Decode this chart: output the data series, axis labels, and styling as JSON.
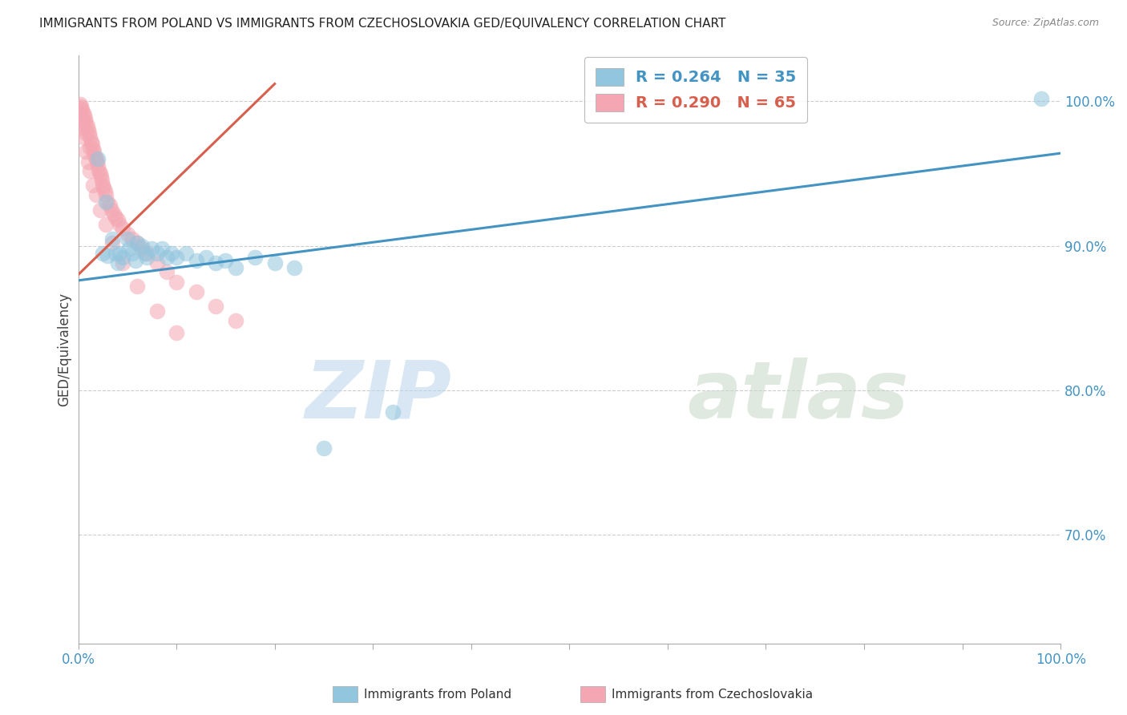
{
  "title": "IMMIGRANTS FROM POLAND VS IMMIGRANTS FROM CZECHOSLOVAKIA GED/EQUIVALENCY CORRELATION CHART",
  "source": "Source: ZipAtlas.com",
  "ylabel": "GED/Equivalency",
  "color_blue": "#92c5de",
  "color_pink": "#f4a7b2",
  "color_line_blue": "#4393c3",
  "color_line_pink": "#d6604d",
  "color_legend_text_blue": "#4393c3",
  "color_legend_text_pink": "#d6604d",
  "watermark_1": "ZIP",
  "watermark_2": "atlas",
  "blue_scatter_x": [
    0.02,
    0.025,
    0.028,
    0.03,
    0.035,
    0.038,
    0.04,
    0.042,
    0.045,
    0.05,
    0.052,
    0.055,
    0.058,
    0.06,
    0.065,
    0.068,
    0.07,
    0.075,
    0.08,
    0.085,
    0.09,
    0.095,
    0.1,
    0.11,
    0.12,
    0.13,
    0.14,
    0.15,
    0.16,
    0.18,
    0.2,
    0.22,
    0.25,
    0.32,
    0.98
  ],
  "blue_scatter_y": [
    0.96,
    0.895,
    0.93,
    0.893,
    0.905,
    0.895,
    0.888,
    0.895,
    0.892,
    0.905,
    0.898,
    0.895,
    0.89,
    0.902,
    0.9,
    0.895,
    0.892,
    0.898,
    0.895,
    0.898,
    0.892,
    0.895,
    0.892,
    0.895,
    0.89,
    0.892,
    0.888,
    0.89,
    0.885,
    0.892,
    0.888,
    0.885,
    0.76,
    0.785,
    1.002
  ],
  "pink_scatter_x": [
    0.002,
    0.003,
    0.004,
    0.005,
    0.006,
    0.007,
    0.008,
    0.009,
    0.01,
    0.011,
    0.012,
    0.013,
    0.014,
    0.015,
    0.016,
    0.017,
    0.018,
    0.019,
    0.02,
    0.021,
    0.022,
    0.023,
    0.024,
    0.025,
    0.026,
    0.027,
    0.028,
    0.03,
    0.032,
    0.034,
    0.036,
    0.038,
    0.04,
    0.042,
    0.045,
    0.05,
    0.055,
    0.06,
    0.065,
    0.07,
    0.08,
    0.09,
    0.1,
    0.12,
    0.14,
    0.16,
    0.003,
    0.005,
    0.008,
    0.01,
    0.012,
    0.015,
    0.018,
    0.022,
    0.028,
    0.035,
    0.045,
    0.06,
    0.08,
    0.1,
    0.002,
    0.004,
    0.006,
    0.008,
    0.012
  ],
  "pink_scatter_y": [
    0.998,
    0.996,
    0.994,
    0.992,
    0.99,
    0.988,
    0.985,
    0.983,
    0.98,
    0.978,
    0.975,
    0.972,
    0.97,
    0.967,
    0.965,
    0.962,
    0.96,
    0.958,
    0.955,
    0.952,
    0.95,
    0.948,
    0.945,
    0.942,
    0.94,
    0.938,
    0.935,
    0.93,
    0.928,
    0.925,
    0.922,
    0.92,
    0.918,
    0.915,
    0.912,
    0.908,
    0.905,
    0.902,
    0.898,
    0.895,
    0.888,
    0.882,
    0.875,
    0.868,
    0.858,
    0.848,
    0.982,
    0.975,
    0.965,
    0.958,
    0.952,
    0.942,
    0.935,
    0.925,
    0.915,
    0.902,
    0.888,
    0.872,
    0.855,
    0.84,
    0.995,
    0.988,
    0.985,
    0.978,
    0.968
  ],
  "blue_line_x0": 0.0,
  "blue_line_x1": 1.0,
  "blue_line_y0": 0.876,
  "blue_line_y1": 0.964,
  "pink_line_x0": 0.0,
  "pink_line_x1": 0.2,
  "pink_line_y0": 0.88,
  "pink_line_y1": 1.012,
  "xlim": [
    0.0,
    1.0
  ],
  "ylim": [
    0.625,
    1.032
  ],
  "yticks": [
    0.7,
    0.8,
    0.9,
    1.0
  ],
  "ytick_labels": [
    "70.0%",
    "80.0%",
    "90.0%",
    "100.0%"
  ],
  "xtick_labels_show": [
    "0.0%",
    "100.0%"
  ],
  "xtick_positions": [
    0.0,
    0.1,
    0.2,
    0.3,
    0.4,
    0.5,
    0.6,
    0.7,
    0.8,
    0.9,
    1.0
  ]
}
